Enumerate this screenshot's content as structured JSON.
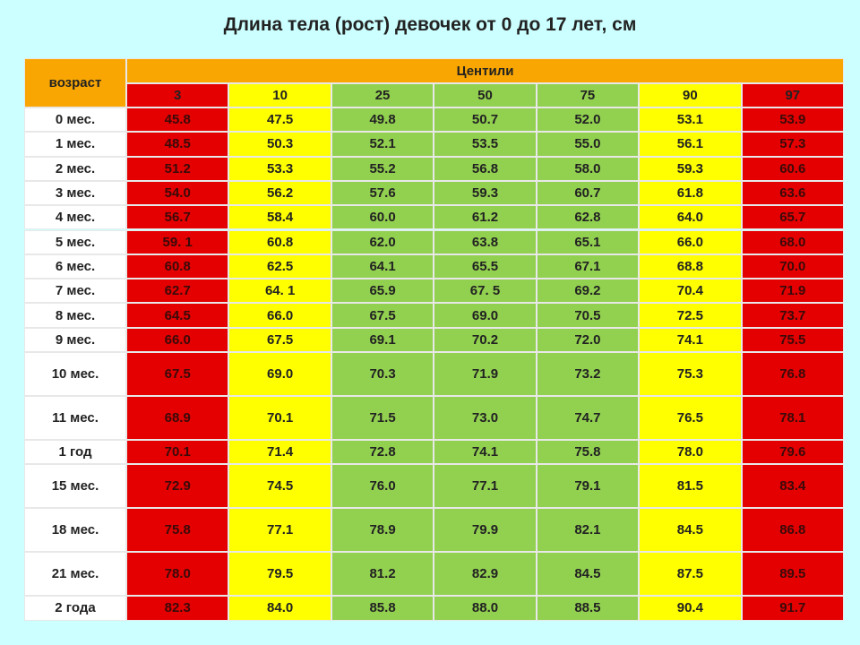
{
  "title": "Длина тела (рост) девочек от 0 до 17 лет, см",
  "table": {
    "header": {
      "age": "возраст",
      "group": "Центили",
      "columns": [
        "3",
        "10",
        "25",
        "50",
        "75",
        "90",
        "97"
      ]
    },
    "rows": [
      {
        "label": "0 мес.",
        "values": [
          "45.8",
          "47.5",
          "49.8",
          "50.7",
          "52.0",
          "53.1",
          "53.9"
        ]
      },
      {
        "label": "1 мес.",
        "values": [
          "48.5",
          "50.3",
          "52.1",
          "53.5",
          "55.0",
          "56.1",
          "57.3"
        ]
      },
      {
        "label": "2 мес.",
        "values": [
          "51.2",
          "53.3",
          "55.2",
          "56.8",
          "58.0",
          "59.3",
          "60.6"
        ]
      },
      {
        "label": "3 мес.",
        "values": [
          "54.0",
          "56.2",
          "57.6",
          "59.3",
          "60.7",
          "61.8",
          "63.6"
        ]
      },
      {
        "label": "4 мес.",
        "values": [
          "56.7",
          "58.4",
          "60.0",
          "61.2",
          "62.8",
          "64.0",
          "65.7"
        ]
      },
      {
        "label": "5 мес.",
        "values": [
          "59. 1",
          "60.8",
          "62.0",
          "63.8",
          "65.1",
          "66.0",
          "68.0"
        ]
      },
      {
        "label": "6 мес.",
        "values": [
          "60.8",
          "62.5",
          "64.1",
          "65.5",
          "67.1",
          "68.8",
          "70.0"
        ]
      },
      {
        "label": "7 мес.",
        "values": [
          "62.7",
          "64. 1",
          "65.9",
          "67. 5",
          "69.2",
          "70.4",
          "71.9"
        ]
      },
      {
        "label": "8 мес.",
        "values": [
          "64.5",
          "66.0",
          "67.5",
          "69.0",
          "70.5",
          "72.5",
          "73.7"
        ]
      },
      {
        "label": "9 мес.",
        "values": [
          "66.0",
          "67.5",
          "69.1",
          "70.2",
          "72.0",
          "74.1",
          "75.5"
        ]
      },
      {
        "label": "10 мес.",
        "values": [
          "67.5",
          "69.0",
          "70.3",
          "71.9",
          "73.2",
          "75.3",
          "76.8"
        ]
      },
      {
        "label": "11 мес.",
        "values": [
          "68.9",
          "70.1",
          "71.5",
          "73.0",
          "74.7",
          "76.5",
          "78.1"
        ]
      },
      {
        "label": "1 год",
        "values": [
          "70.1",
          "71.4",
          "72.8",
          "74.1",
          "75.8",
          "78.0",
          "79.6"
        ]
      },
      {
        "label": "15 мес.",
        "values": [
          "72.9",
          "74.5",
          "76.0",
          "77.1",
          "79.1",
          "81.5",
          "83.4"
        ]
      },
      {
        "label": "18 мес.",
        "values": [
          "75.8",
          "77.1",
          "78.9",
          "79.9",
          "82.1",
          "84.5",
          "86.8"
        ]
      },
      {
        "label": "21 мес.",
        "values": [
          "78.0",
          "79.5",
          "81.2",
          "82.9",
          "84.5",
          "87.5",
          "89.5"
        ]
      },
      {
        "label": "2 года",
        "values": [
          "82.3",
          "84.0",
          "85.8",
          "88.0",
          "88.5",
          "90.4",
          "91.7"
        ]
      }
    ]
  }
}
